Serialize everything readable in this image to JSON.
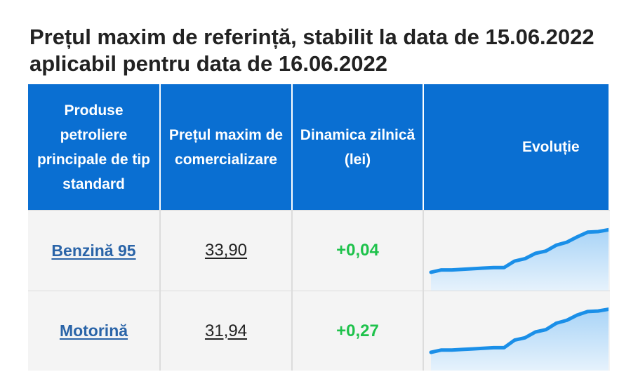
{
  "title": "Prețul maxim de referință, stabilit la data de 15.06.2022 aplicabil pentru data de 16.06.2022",
  "table": {
    "headers": [
      "Produse petroliere principale de tip standard",
      "Prețul maxim de comercializare",
      "Dinamica zilnică (lei)",
      "Evoluție"
    ],
    "rows": [
      {
        "product": "Benzină 95",
        "price": "33,90",
        "change": "+0,04",
        "trend": [
          0.12,
          0.16,
          0.16,
          0.17,
          0.18,
          0.19,
          0.2,
          0.2,
          0.31,
          0.35,
          0.44,
          0.48,
          0.58,
          0.63,
          0.72,
          0.8,
          0.81,
          0.84
        ]
      },
      {
        "product": "Motorină",
        "price": "31,94",
        "change": "+0,27",
        "trend": [
          0.12,
          0.16,
          0.16,
          0.17,
          0.18,
          0.19,
          0.2,
          0.2,
          0.33,
          0.37,
          0.47,
          0.51,
          0.62,
          0.67,
          0.76,
          0.82,
          0.83,
          0.86
        ]
      }
    ]
  },
  "colors": {
    "header_bg": "#0a6fd2",
    "link": "#2a64a8",
    "positive": "#1ec24b",
    "spark_line": "#1a8fe8",
    "spark_fill_top": "#a9d4f7",
    "spark_fill_bottom": "#e6f2fc"
  }
}
